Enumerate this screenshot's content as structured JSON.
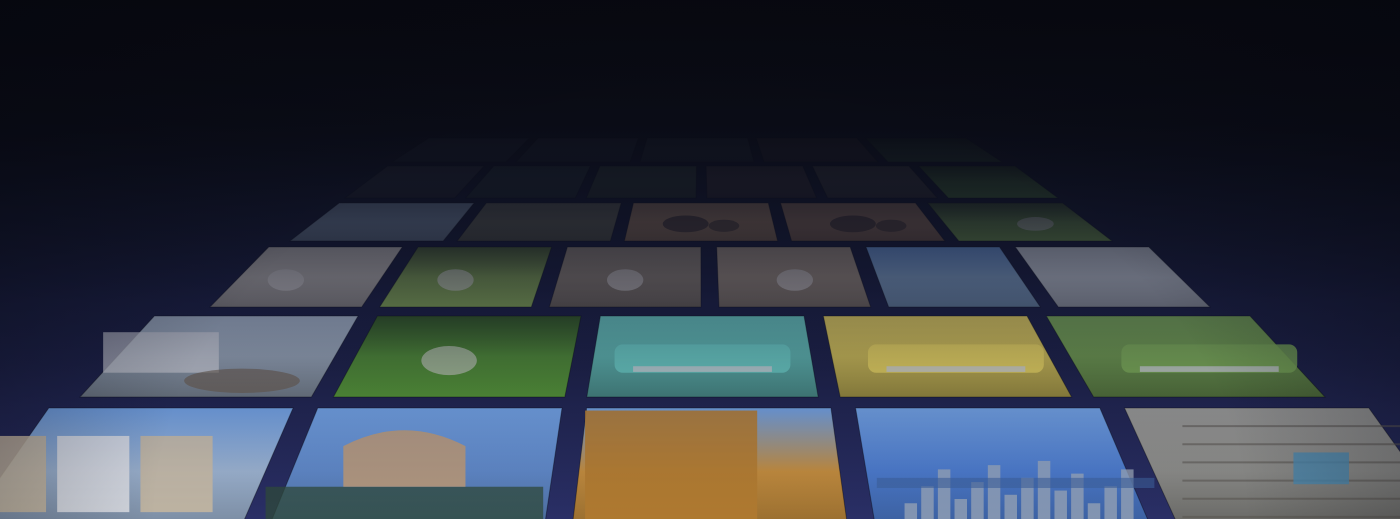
{
  "wall": {
    "rows": [
      {
        "tiles": [
          {
            "subject": "dim",
            "color": "#2a3340"
          },
          {
            "subject": "dim",
            "color": "#2c3540"
          },
          {
            "subject": "dim",
            "color": "#31383f"
          },
          {
            "subject": "dim",
            "color": "#3a3030"
          },
          {
            "subject": "grass",
            "color": "#2f4a2a"
          }
        ]
      },
      {
        "tiles": [
          {
            "subject": "dim",
            "color": "#30343b"
          },
          {
            "subject": "dim",
            "color": "#2b3a3a"
          },
          {
            "subject": "dim",
            "color": "#3a4a3a"
          },
          {
            "subject": "dim",
            "color": "#443838"
          },
          {
            "subject": "dim",
            "color": "#4a4640"
          },
          {
            "subject": "grass",
            "color": "#4d7a32"
          }
        ]
      },
      {
        "tiles": [
          {
            "subject": "snow",
            "color": "#8aa0b4"
          },
          {
            "subject": "field",
            "color": "#6a6a52"
          },
          {
            "subject": "elephants",
            "color": "#b08a62"
          },
          {
            "subject": "elephants",
            "color": "#a07a5a"
          },
          {
            "subject": "dog-grass",
            "color": "#6a9040"
          }
        ]
      },
      {
        "tiles": [
          {
            "subject": "cat-room",
            "color": "#b9b4aa"
          },
          {
            "subject": "cat-grass",
            "color": "#7a9a48"
          },
          {
            "subject": "cat-deck",
            "color": "#8a7e6c"
          },
          {
            "subject": "cat-deck",
            "color": "#9a8a76"
          },
          {
            "subject": "coast",
            "color": "#7fa0c0"
          },
          {
            "subject": "snow",
            "color": "#c2c8cc"
          }
        ]
      },
      {
        "tiles": [
          {
            "subject": "garden-house",
            "color": "#9aa8b6"
          },
          {
            "subject": "dog-lawn",
            "color": "#4e8a30"
          },
          {
            "subject": "car-teal",
            "color": "#5fb8ae"
          },
          {
            "subject": "car-yellow",
            "color": "#d2bf52"
          },
          {
            "subject": "car-blue",
            "color": "#6f9a4a"
          }
        ]
      },
      {
        "tiles": [
          {
            "subject": "houses",
            "color": "#9ab0cc"
          },
          {
            "subject": "rotunda",
            "color": "#5e86c4"
          },
          {
            "subject": "tower",
            "color": "#c08a3c"
          },
          {
            "subject": "skyline",
            "color": "#4a78c8"
          },
          {
            "subject": "wood-wall",
            "color": "#8a8a86"
          }
        ]
      }
    ]
  }
}
